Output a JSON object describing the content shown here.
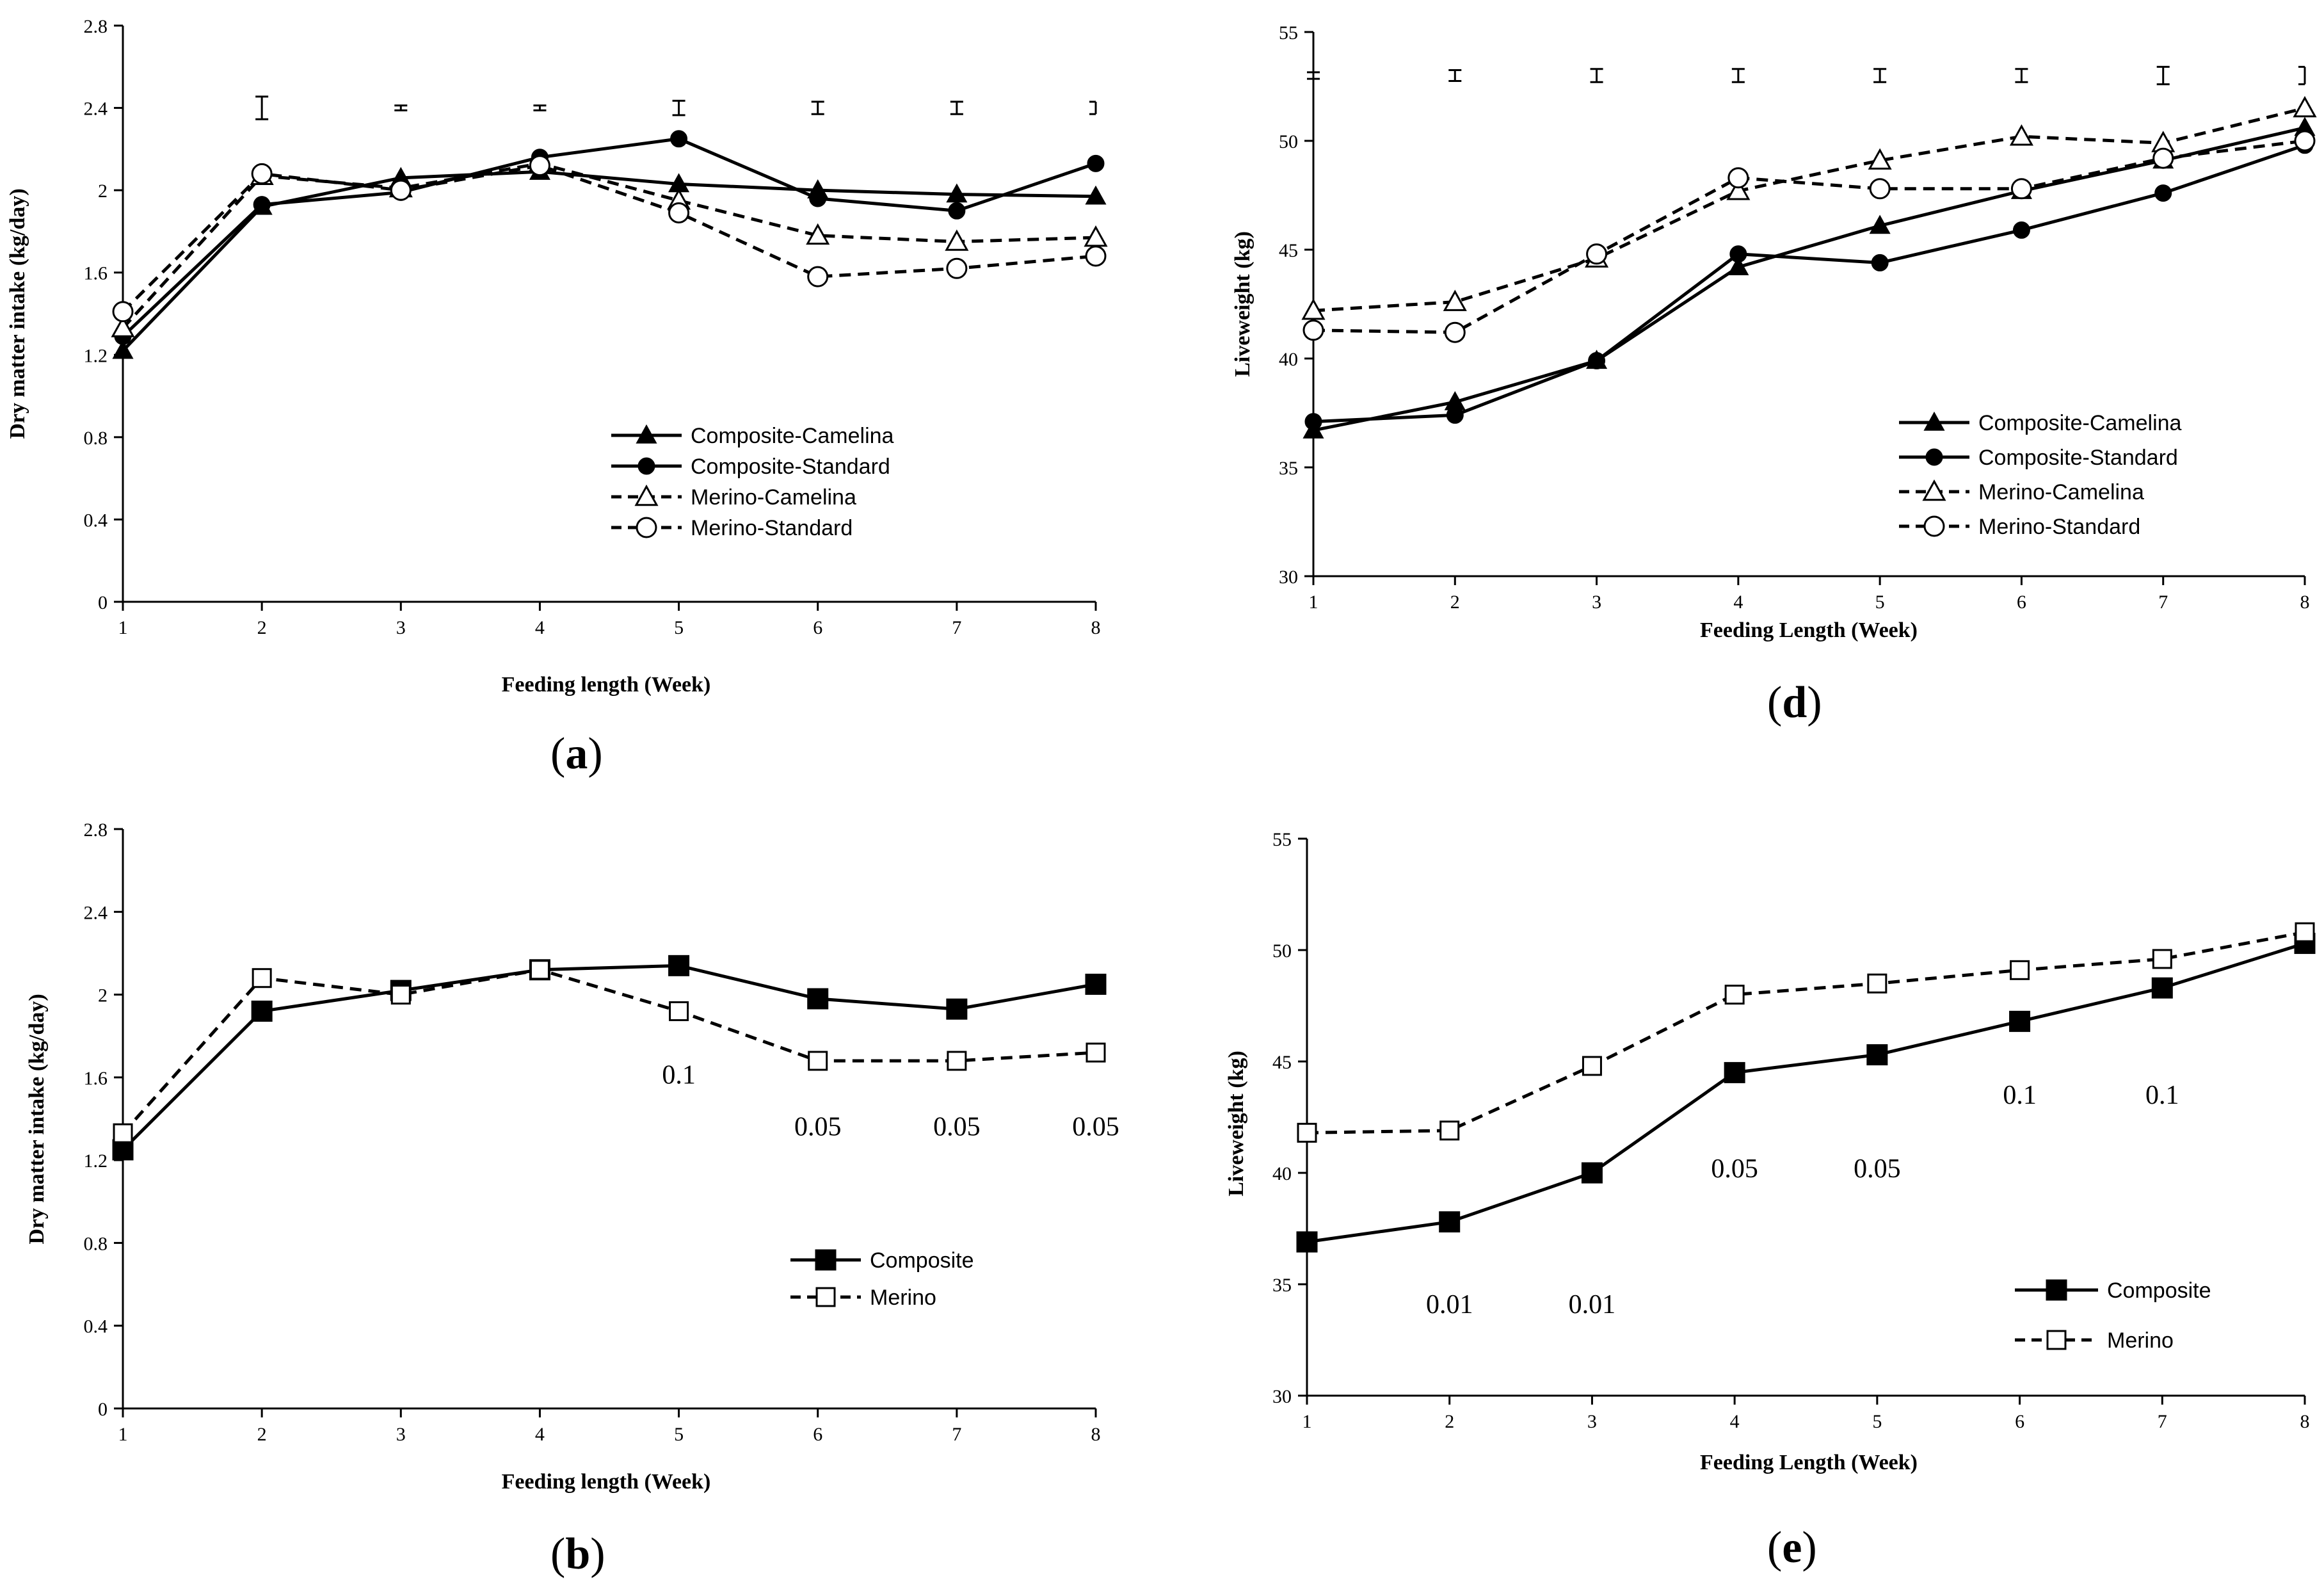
{
  "figure": {
    "background": "#ffffff",
    "ink": "#000000"
  },
  "chart_data": [
    {
      "id": "a",
      "panel_label": "a",
      "type": "line",
      "xlabel": "Feeding length (Week)",
      "ylabel": "Dry matter intake (kg/day)",
      "x": [
        1,
        2,
        3,
        4,
        5,
        6,
        7,
        8
      ],
      "ylim": [
        0,
        2.8
      ],
      "yticks": [
        0,
        0.4,
        0.8,
        1.2,
        1.6,
        2,
        2.4,
        2.8
      ],
      "ytick_labels": [
        "0",
        "0.4",
        "0.8",
        "1.2",
        "1.6",
        "2",
        "2.4",
        "2.8"
      ],
      "legend_position": "center-right",
      "series": [
        {
          "name": "Composite-Camelina",
          "marker": "triangle",
          "filled": true,
          "dashed": false,
          "values": [
            1.22,
            1.92,
            2.06,
            2.09,
            2.03,
            2.0,
            1.98,
            1.97
          ]
        },
        {
          "name": "Composite-Standard",
          "marker": "circle",
          "filled": true,
          "dashed": false,
          "values": [
            1.29,
            1.93,
            1.99,
            2.16,
            2.25,
            1.96,
            1.9,
            2.13
          ]
        },
        {
          "name": "Merino-Camelina",
          "marker": "triangle",
          "filled": false,
          "dashed": true,
          "values": [
            1.33,
            2.07,
            2.01,
            2.13,
            1.95,
            1.78,
            1.75,
            1.77
          ]
        },
        {
          "name": "Merino-Standard",
          "marker": "circle",
          "filled": false,
          "dashed": true,
          "values": [
            1.41,
            2.08,
            2.0,
            2.12,
            1.89,
            1.58,
            1.62,
            1.68
          ]
        }
      ],
      "error_bars": [
        {
          "x": 2,
          "center": 2.4,
          "half": 0.055
        },
        {
          "x": 3,
          "center": 2.4,
          "half": 0.012
        },
        {
          "x": 4,
          "center": 2.4,
          "half": 0.012
        },
        {
          "x": 5,
          "center": 2.4,
          "half": 0.035
        },
        {
          "x": 6,
          "center": 2.4,
          "half": 0.03
        },
        {
          "x": 7,
          "center": 2.4,
          "half": 0.03
        },
        {
          "x": 8,
          "center": 2.4,
          "half": 0.03,
          "half_bar": true
        }
      ],
      "p_values": []
    },
    {
      "id": "b",
      "panel_label": "b",
      "type": "line",
      "xlabel": "Feeding length (Week)",
      "ylabel": "Dry matter intake (kg/day)",
      "x": [
        1,
        2,
        3,
        4,
        5,
        6,
        7,
        8
      ],
      "ylim": [
        0,
        2.8
      ],
      "yticks": [
        0,
        0.4,
        0.8,
        1.2,
        1.6,
        2,
        2.4,
        2.8
      ],
      "ytick_labels": [
        "0",
        "0.4",
        "0.8",
        "1.2",
        "1.6",
        "2",
        "2.4",
        "2.8"
      ],
      "legend_position": "center-right",
      "series": [
        {
          "name": "Composite",
          "marker": "square",
          "filled": true,
          "dashed": false,
          "values": [
            1.25,
            1.92,
            2.02,
            2.12,
            2.14,
            1.98,
            1.93,
            2.05
          ]
        },
        {
          "name": "Merino",
          "marker": "square",
          "filled": false,
          "dashed": true,
          "values": [
            1.33,
            2.08,
            2.0,
            2.12,
            1.92,
            1.68,
            1.68,
            1.72
          ]
        }
      ],
      "error_bars": [],
      "p_values": [
        {
          "x": 5,
          "y": 1.57,
          "label": "0.1"
        },
        {
          "x": 6,
          "y": 1.32,
          "label": "0.05"
        },
        {
          "x": 7,
          "y": 1.32,
          "label": "0.05"
        },
        {
          "x": 8,
          "y": 1.32,
          "label": "0.05"
        }
      ]
    },
    {
      "id": "d",
      "panel_label": "d",
      "type": "line",
      "xlabel": "Feeding Length (Week)",
      "ylabel": "Liveweight (kg)",
      "x": [
        1,
        2,
        3,
        4,
        5,
        6,
        7,
        8
      ],
      "ylim": [
        30,
        55
      ],
      "yticks": [
        30,
        35,
        40,
        45,
        50,
        55
      ],
      "ytick_labels": [
        "30",
        "35",
        "40",
        "45",
        "50",
        "55"
      ],
      "legend_position": "bottom-center",
      "series": [
        {
          "name": "Composite-Camelina",
          "marker": "triangle",
          "filled": true,
          "dashed": false,
          "values": [
            36.7,
            38.0,
            39.9,
            44.2,
            46.1,
            47.7,
            49.1,
            50.6
          ]
        },
        {
          "name": "Composite-Standard",
          "marker": "circle",
          "filled": true,
          "dashed": false,
          "values": [
            37.1,
            37.4,
            39.9,
            44.8,
            44.4,
            45.9,
            47.6,
            49.8
          ]
        },
        {
          "name": "Merino-Camelina",
          "marker": "triangle",
          "filled": false,
          "dashed": true,
          "values": [
            42.2,
            42.6,
            44.6,
            47.7,
            49.1,
            50.2,
            49.9,
            51.5
          ]
        },
        {
          "name": "Merino-Standard",
          "marker": "circle",
          "filled": false,
          "dashed": true,
          "values": [
            41.3,
            41.2,
            44.8,
            48.3,
            47.8,
            47.8,
            49.2,
            50.0
          ]
        }
      ],
      "error_bars": [
        {
          "x": 1,
          "center": 53.0,
          "half": 0.15
        },
        {
          "x": 2,
          "center": 53.0,
          "half": 0.25
        },
        {
          "x": 3,
          "center": 53.0,
          "half": 0.3
        },
        {
          "x": 4,
          "center": 53.0,
          "half": 0.3
        },
        {
          "x": 5,
          "center": 53.0,
          "half": 0.3
        },
        {
          "x": 6,
          "center": 53.0,
          "half": 0.3
        },
        {
          "x": 7,
          "center": 53.0,
          "half": 0.4
        },
        {
          "x": 8,
          "center": 53.0,
          "half": 0.4,
          "half_bar": true
        }
      ],
      "p_values": []
    },
    {
      "id": "e",
      "panel_label": "e",
      "type": "line",
      "xlabel": "Feeding Length (Week)",
      "ylabel": "Liveweight (kg)",
      "x": [
        1,
        2,
        3,
        4,
        5,
        6,
        7,
        8
      ],
      "ylim": [
        30,
        55
      ],
      "yticks": [
        30,
        35,
        40,
        45,
        50,
        55
      ],
      "ytick_labels": [
        "30",
        "35",
        "40",
        "45",
        "50",
        "55"
      ],
      "legend_position": "bottom-right",
      "series": [
        {
          "name": "Composite",
          "marker": "square",
          "filled": true,
          "dashed": false,
          "values": [
            36.9,
            37.8,
            40.0,
            44.5,
            45.3,
            46.8,
            48.3,
            50.3
          ]
        },
        {
          "name": "Merino",
          "marker": "square",
          "filled": false,
          "dashed": true,
          "values": [
            41.8,
            41.9,
            44.8,
            48.0,
            48.5,
            49.1,
            49.6,
            50.8
          ]
        }
      ],
      "error_bars": [],
      "p_values": [
        {
          "x": 2,
          "y": 33.7,
          "label": "0.01"
        },
        {
          "x": 3,
          "y": 33.7,
          "label": "0.01"
        },
        {
          "x": 4,
          "y": 39.8,
          "label": "0.05"
        },
        {
          "x": 5,
          "y": 39.8,
          "label": "0.05"
        },
        {
          "x": 6,
          "y": 43.1,
          "label": "0.1"
        },
        {
          "x": 7,
          "y": 43.1,
          "label": "0.1"
        }
      ]
    }
  ]
}
